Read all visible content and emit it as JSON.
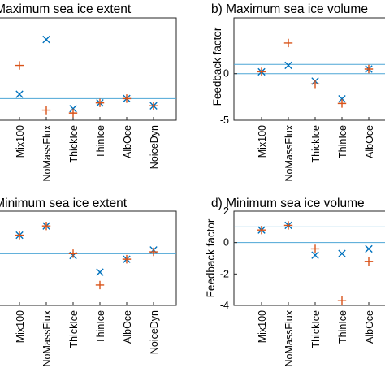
{
  "colors": {
    "x_marker": "#0072BD",
    "plus_marker": "#D95319",
    "ref_line": "#4DA6D6",
    "axis": "#262626"
  },
  "chart_data": [
    {
      "type": "scatter",
      "title": "a) Maximum sea ice extent",
      "ylabel": "",
      "categories": [
        "Mix100",
        "NoMassFlux",
        "ThickIce",
        "ThinIce",
        "AlbOce",
        "NoiceDyn"
      ],
      "series": [
        {
          "marker": "x",
          "values": [
            0.3,
            4.1,
            -0.7,
            -0.3,
            0.0,
            -0.5
          ]
        },
        {
          "marker": "+",
          "values": [
            2.3,
            -0.8,
            -1.0,
            -0.3,
            0.0,
            -0.5
          ]
        }
      ],
      "ref_lines": [
        0
      ],
      "ylim": [
        -1.5,
        5.6
      ],
      "yticks": []
    },
    {
      "type": "scatter",
      "title": "b) Maximum sea ice volume",
      "ylabel": "Feedback factor",
      "categories": [
        "Mix100",
        "NoMassFlux",
        "ThickIce",
        "ThinIce",
        "AlbOce"
      ],
      "series": [
        {
          "marker": "x",
          "values": [
            0.2,
            0.9,
            -0.8,
            -2.7,
            0.5
          ]
        },
        {
          "marker": "+",
          "values": [
            0.2,
            3.3,
            -1.1,
            -3.2,
            0.5
          ]
        }
      ],
      "ref_lines": [
        1,
        0
      ],
      "ylim": [
        -5,
        6
      ],
      "yticks": [
        0,
        -5
      ]
    },
    {
      "type": "scatter",
      "title": "c) Minimum sea ice extent",
      "ylabel": "",
      "categories": [
        "Mix100",
        "NoMassFlux",
        "ThickIce",
        "ThinIce",
        "AlbOce",
        "NoiceDyn"
      ],
      "series": [
        {
          "marker": "x",
          "values": [
            1.0,
            1.5,
            -0.1,
            -1.0,
            -0.3,
            0.2
          ]
        },
        {
          "marker": "+",
          "values": [
            1.0,
            1.5,
            0.0,
            -1.7,
            -0.3,
            0.1
          ]
        }
      ],
      "ref_lines": [
        0
      ],
      "ylim": [
        -2.8,
        2.3
      ],
      "yticks": []
    },
    {
      "type": "scatter",
      "title": "d) Minimum sea ice volume",
      "ylabel": "Feedback factor",
      "categories": [
        "Mix100",
        "NoMassFlux",
        "ThickIce",
        "ThinIce",
        "AlbOce"
      ],
      "series": [
        {
          "marker": "x",
          "values": [
            0.8,
            1.1,
            -0.8,
            -0.7,
            -0.4
          ]
        },
        {
          "marker": "+",
          "values": [
            0.8,
            1.1,
            -0.4,
            -3.7,
            -1.2
          ]
        }
      ],
      "ref_lines": [
        1,
        0
      ],
      "ylim": [
        -4,
        2
      ],
      "yticks": [
        2,
        0,
        -2,
        -4
      ]
    }
  ]
}
